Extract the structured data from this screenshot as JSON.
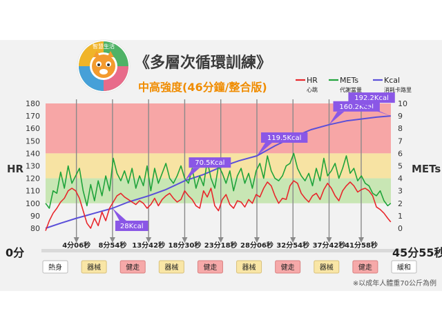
{
  "header": {
    "title": "《多層次循環訓練》",
    "subtitle": "中高強度(46分鐘/整合版)",
    "logo_text": "智慧生活",
    "logo_side_left": "智慧生活",
    "logo_side_right": "智慧三合一"
  },
  "legend": [
    {
      "name": "HR",
      "sub": "心跳",
      "color": "#e8262b"
    },
    {
      "name": "METs",
      "sub": "代謝當量",
      "color": "#1fa33a"
    },
    {
      "name": "Kcal",
      "sub": "消耗卡路里",
      "color": "#5a4fd9"
    }
  ],
  "colors": {
    "band_red": "#f7a6a6",
    "band_yellow": "#f7e3a3",
    "band_green": "#c8e6b4",
    "callout": "#8a57e6",
    "marker": "#8a8a8a",
    "panel": "#f2f2f2"
  },
  "chart_data": {
    "type": "line",
    "y_left_label": "HR",
    "y_left_ticks": [
      80,
      90,
      100,
      110,
      120,
      130,
      140,
      150,
      160,
      170,
      180
    ],
    "y_left_range": [
      75,
      180
    ],
    "y_right_label": "METs",
    "y_right_ticks": [
      0,
      1,
      2,
      3,
      4,
      5,
      6,
      7,
      8,
      9,
      10
    ],
    "y_right_range": [
      -0.5,
      10
    ],
    "x_start_label": "0分",
    "x_end_label": "45分55秒",
    "x_range_min": [
      0,
      45.92
    ],
    "hr_zones": [
      {
        "from": 140,
        "to": 180,
        "zone": "red"
      },
      {
        "from": 120,
        "to": 140,
        "zone": "yellow"
      },
      {
        "from": 100,
        "to": 120,
        "zone": "green"
      }
    ],
    "markers": [
      {
        "label": "4分06秒",
        "min": 4.1
      },
      {
        "label": "8分54秒",
        "min": 8.9
      },
      {
        "label": "13分42秒",
        "min": 13.7
      },
      {
        "label": "18分30秒",
        "min": 18.5
      },
      {
        "label": "23分18秒",
        "min": 23.3
      },
      {
        "label": "28分06秒",
        "min": 28.1
      },
      {
        "label": "32分54秒",
        "min": 32.9
      },
      {
        "label": "37分42秒",
        "min": 37.7
      },
      {
        "label": "41分58秒",
        "min": 41.97
      }
    ],
    "kcal_callouts": [
      {
        "label": "28Kcal",
        "min": 8.9,
        "mets_level": 1.6
      },
      {
        "label": "70.5Kcal",
        "min": 18.5,
        "mets_level": 3.8
      },
      {
        "label": "119.5Kcal",
        "min": 28.1,
        "mets_level": 5.8
      },
      {
        "label": "160.2Kcal",
        "min": 37.7,
        "mets_level": 8.3
      },
      {
        "label": "192.2Kcal",
        "min": 45.9,
        "mets_level": 9.0
      }
    ],
    "series": [
      {
        "name": "Kcal",
        "points_x_min": [
          0,
          2,
          4.1,
          6.5,
          8.9,
          11,
          13.7,
          16,
          18.5,
          21,
          23.3,
          25.7,
          28.1,
          30.5,
          32.9,
          35.3,
          37.7,
          40,
          41.97,
          44,
          45.9
        ],
        "points_mets_level": [
          0,
          0.4,
          0.8,
          1.2,
          1.6,
          2.1,
          2.6,
          3.1,
          3.8,
          4.3,
          4.9,
          5.4,
          5.8,
          6.6,
          7.3,
          7.9,
          8.3,
          8.6,
          8.75,
          8.9,
          9.0
        ]
      },
      {
        "name": "HR",
        "points_x_min": [
          0,
          0.5,
          1,
          1.5,
          2,
          2.5,
          3,
          3.5,
          4,
          4.5,
          5,
          5.5,
          6,
          6.5,
          7,
          7.5,
          8,
          8.5,
          9,
          9.5,
          10,
          10.5,
          11,
          11.5,
          12,
          12.5,
          13,
          13.5,
          14,
          14.5,
          15,
          15.5,
          16,
          16.5,
          17,
          17.5,
          18,
          18.5,
          19,
          19.5,
          20,
          20.5,
          21,
          21.5,
          22,
          22.5,
          23,
          23.5,
          24,
          24.5,
          25,
          25.5,
          26,
          26.5,
          27,
          27.5,
          28,
          28.5,
          29,
          29.5,
          30,
          30.5,
          31,
          31.5,
          32,
          32.5,
          33,
          33.5,
          34,
          34.5,
          35,
          35.5,
          36,
          36.5,
          37,
          37.5,
          38,
          38.5,
          39,
          39.5,
          40,
          40.5,
          41,
          41.5,
          42,
          42.5,
          43,
          43.5,
          44,
          44.5,
          45,
          45.5,
          45.9
        ],
        "values": [
          78,
          86,
          92,
          96,
          101,
          104,
          110,
          112,
          110,
          104,
          94,
          84,
          80,
          88,
          82,
          93,
          86,
          96,
          101,
          106,
          108,
          105,
          103,
          101,
          99,
          102,
          100,
          96,
          99,
          104,
          98,
          103,
          106,
          108,
          104,
          101,
          103,
          110,
          106,
          103,
          98,
          96,
          110,
          105,
          112,
          98,
          94,
          103,
          107,
          99,
          96,
          102,
          101,
          97,
          103,
          100,
          107,
          105,
          112,
          117,
          114,
          106,
          100,
          104,
          103,
          114,
          118,
          116,
          108,
          104,
          101,
          106,
          108,
          103,
          111,
          116,
          112,
          106,
          102,
          110,
          114,
          117,
          114,
          109,
          111,
          112,
          110,
          106,
          97,
          95,
          92,
          88,
          85,
          82,
          80
        ]
      },
      {
        "name": "METs",
        "points_x_min": [
          0,
          0.5,
          1,
          1.5,
          2,
          2.5,
          3,
          3.5,
          4,
          4.5,
          5,
          5.5,
          6,
          6.5,
          7,
          7.5,
          8,
          8.5,
          9,
          9.5,
          10,
          10.5,
          11,
          11.5,
          12,
          12.5,
          13,
          13.5,
          14,
          14.5,
          15,
          15.5,
          16,
          16.5,
          17,
          17.5,
          18,
          18.5,
          19,
          19.5,
          20,
          20.5,
          21,
          21.5,
          22,
          22.5,
          23,
          23.5,
          24,
          24.5,
          25,
          25.5,
          26,
          26.5,
          27,
          27.5,
          28,
          28.5,
          29,
          29.5,
          30,
          30.5,
          31,
          31.5,
          32,
          32.5,
          33,
          33.5,
          34,
          34.5,
          35,
          35.5,
          36,
          36.5,
          37,
          37.5,
          38,
          38.5,
          39,
          39.5,
          40,
          40.5,
          41,
          41.5,
          42,
          42.5,
          43,
          43.5,
          44,
          44.5,
          45,
          45.5,
          45.9
        ],
        "values": [
          2.0,
          1.6,
          3.0,
          2.8,
          4.5,
          3.2,
          5.0,
          3.6,
          4.2,
          4.8,
          3.0,
          1.8,
          3.5,
          2.2,
          3.8,
          2.6,
          4.2,
          3.0,
          5.6,
          4.4,
          3.8,
          4.6,
          3.6,
          4.8,
          3.2,
          4.2,
          3.4,
          5.0,
          3.0,
          4.8,
          3.6,
          4.4,
          5.2,
          4.0,
          3.6,
          4.2,
          5.0,
          4.0,
          3.6,
          4.8,
          3.2,
          4.2,
          3.4,
          5.4,
          4.0,
          3.2,
          5.0,
          4.4,
          3.6,
          4.6,
          3.0,
          4.2,
          4.8,
          3.6,
          4.4,
          3.2,
          4.6,
          5.2,
          4.0,
          5.8,
          4.6,
          4.0,
          3.8,
          4.2,
          5.0,
          5.2,
          6.0,
          4.8,
          4.2,
          3.8,
          4.4,
          3.4,
          4.8,
          3.8,
          5.6,
          4.2,
          4.6,
          5.2,
          4.0,
          4.8,
          5.8,
          4.4,
          4.8,
          3.8,
          4.2,
          3.6,
          3.4,
          2.8,
          2.6,
          3.0,
          2.2,
          1.8,
          2.0,
          1.6,
          1.4
        ]
      }
    ]
  },
  "phases": [
    {
      "label": "熱身",
      "type": "warm"
    },
    {
      "label": "器械",
      "type": "machine"
    },
    {
      "label": "健走",
      "type": "walk"
    },
    {
      "label": "器械",
      "type": "machine"
    },
    {
      "label": "健走",
      "type": "walk"
    },
    {
      "label": "器械",
      "type": "machine"
    },
    {
      "label": "健走",
      "type": "walk"
    },
    {
      "label": "器械",
      "type": "machine"
    },
    {
      "label": "健走",
      "type": "walk"
    },
    {
      "label": "緩和",
      "type": "cool"
    }
  ],
  "phase_colors": {
    "warm": {
      "fill": "#ffffff",
      "stroke": "#bbbbbb"
    },
    "machine": {
      "fill": "#f9e6a6",
      "stroke": "#d8c07a"
    },
    "walk": {
      "fill": "#f6a9a9",
      "stroke": "#d98080"
    },
    "cool": {
      "fill": "#ffffff",
      "stroke": "#bbbbbb"
    }
  },
  "footnote": "※以成年人體重70公斤為例"
}
